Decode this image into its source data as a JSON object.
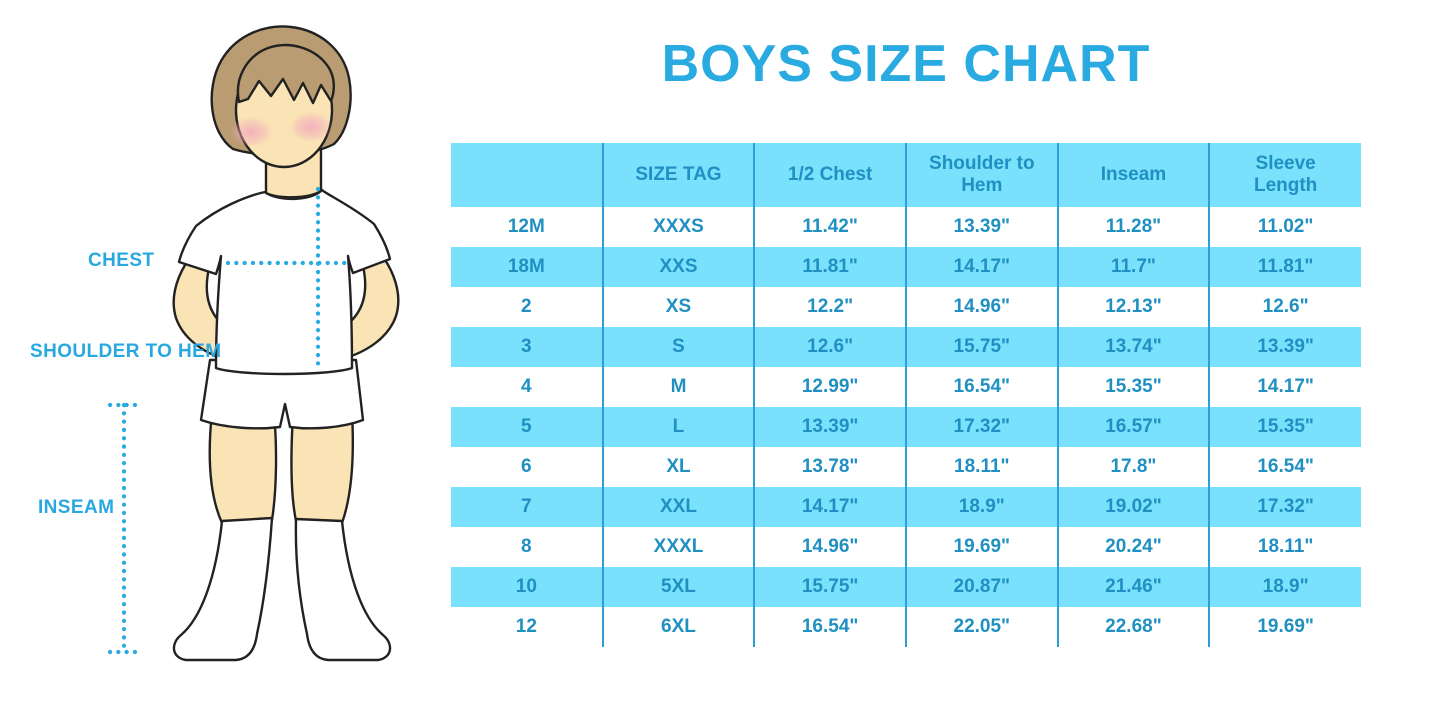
{
  "title": "BOYS SIZE CHART",
  "figure": {
    "description": "boy-in-tshirt-shorts-and-socks-measurement-diagram",
    "labels": {
      "chest": "CHEST",
      "shoulder_to_hem": "SHOULDER TO HEM",
      "inseam": "INSEAM"
    }
  },
  "chart_data": {
    "type": "table",
    "title": "BOYS SIZE CHART",
    "columns": [
      "",
      "SIZE TAG",
      "1/2 Chest",
      "Shoulder to Hem",
      "Inseam",
      "Sleeve Length"
    ],
    "rows": [
      [
        "12M",
        "XXXS",
        "11.42\"",
        "13.39\"",
        "11.28\"",
        "11.02\""
      ],
      [
        "18M",
        "XXS",
        "11.81\"",
        "14.17\"",
        "11.7\"",
        "11.81\""
      ],
      [
        "2",
        "XS",
        "12.2\"",
        "14.96\"",
        "12.13\"",
        "12.6\""
      ],
      [
        "3",
        "S",
        "12.6\"",
        "15.75\"",
        "13.74\"",
        "13.39\""
      ],
      [
        "4",
        "M",
        "12.99\"",
        "16.54\"",
        "15.35\"",
        "14.17\""
      ],
      [
        "5",
        "L",
        "13.39\"",
        "17.32\"",
        "16.57\"",
        "15.35\""
      ],
      [
        "6",
        "XL",
        "13.78\"",
        "18.11\"",
        "17.8\"",
        "16.54\""
      ],
      [
        "7",
        "XXL",
        "14.17\"",
        "18.9\"",
        "19.02\"",
        "17.32\""
      ],
      [
        "8",
        "XXXL",
        "14.96\"",
        "19.69\"",
        "20.24\"",
        "18.11\""
      ],
      [
        "10",
        "5XL",
        "15.75\"",
        "20.87\"",
        "21.46\"",
        "18.9\""
      ],
      [
        "12",
        "6XL",
        "16.54\"",
        "22.05\"",
        "22.68\"",
        "19.69\""
      ]
    ],
    "layout": {
      "header_fill": "alternating-cyan",
      "grid": "vertical-dividers-only"
    }
  },
  "colors": {
    "title_blue": "#29ABE2",
    "label_blue": "#29A8E0",
    "row_alt": "#79E1FC",
    "table_text": "#2090C2",
    "divider": "#2E9FD2",
    "dotted_line": "#29ABE2",
    "skin": "#FAE3B4",
    "hair": "#B99C72",
    "blush": "#F2A9BE"
  }
}
